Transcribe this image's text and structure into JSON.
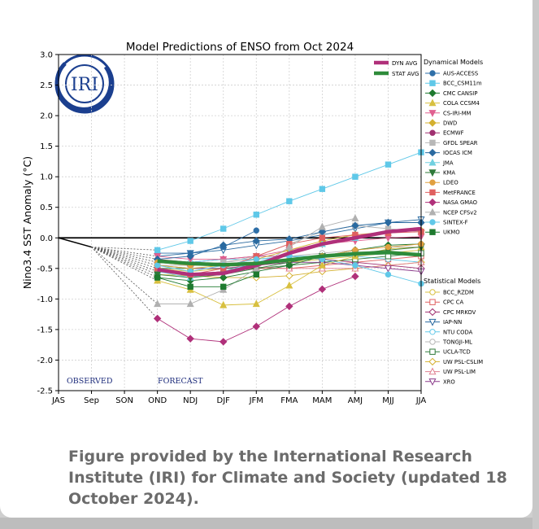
{
  "caption": "Figure provided by the International Research Institute (IRI) for Climate and Society (updated 18 October 2024).",
  "logo": {
    "text": "IRI",
    "color": "#1b3f8f"
  },
  "chart_data": {
    "type": "line",
    "title": "Model Predictions of ENSO from Oct 2024",
    "ylabel": "Nino3.4 SST Anomaly (°C)",
    "xlabel": "",
    "categories": [
      "JAS",
      "Sep",
      "SON",
      "OND",
      "NDJ",
      "DJF",
      "JFM",
      "FMA",
      "MAM",
      "AMJ",
      "MJJ",
      "JJA"
    ],
    "ylim": [
      -2.5,
      3.0
    ],
    "yticks": [
      "-2.5",
      "-2.0",
      "-1.5",
      "-1.0",
      "-0.5",
      "0.0",
      "0.5",
      "1.0",
      "1.5",
      "2.0",
      "2.5",
      "3.0"
    ],
    "ytick_values": [
      -2.5,
      -2.0,
      -1.5,
      -1.0,
      -0.5,
      0.0,
      0.5,
      1.0,
      1.5,
      2.0,
      2.5,
      3.0
    ],
    "grid": true,
    "annotations": {
      "observed": "OBSERVED",
      "forecast": "FORECAST"
    },
    "legend_avg": [
      {
        "name": "DYN AVG",
        "color": "#b0307a"
      },
      {
        "name": "STAT AVG",
        "color": "#2e8b3a"
      }
    ],
    "legend_dynamical_title": "Dynamical Models",
    "legend_statistical_title": "Statistical Models",
    "observed_line": {
      "x": [
        0,
        1
      ],
      "values": [
        0.0,
        -0.15
      ]
    },
    "dynamical": [
      {
        "name": "AUS-ACCESS",
        "color": "#2e6fa8",
        "marker": "o",
        "values": [
          null,
          null,
          null,
          -0.25,
          -0.25,
          -0.15,
          0.12,
          null,
          null,
          null,
          null,
          null
        ]
      },
      {
        "name": "BCC_CSM11m",
        "color": "#5fc8e8",
        "marker": "s",
        "values": [
          null,
          null,
          null,
          -0.2,
          -0.05,
          0.15,
          0.38,
          0.6,
          0.8,
          1.0,
          1.2,
          1.4
        ]
      },
      {
        "name": "CMC CANSIP",
        "color": "#1e7a2f",
        "marker": "D",
        "values": [
          null,
          null,
          null,
          -0.65,
          -0.7,
          -0.65,
          -0.55,
          -0.45,
          -0.3,
          -0.2,
          -0.12,
          -0.1
        ]
      },
      {
        "name": "COLA CCSM4",
        "color": "#d8c040",
        "marker": "^",
        "values": [
          null,
          null,
          null,
          -0.7,
          -0.85,
          -1.1,
          -1.08,
          -0.78,
          -0.45,
          -0.3,
          -0.18,
          -0.15
        ]
      },
      {
        "name": "CS-IRI-MM",
        "color": "#e06090",
        "marker": "v",
        "values": [
          null,
          null,
          null,
          -0.3,
          -0.35,
          -0.35,
          -0.3,
          -0.2,
          -0.1,
          -0.05,
          0.0,
          0.02
        ]
      },
      {
        "name": "DWD",
        "color": "#d4b030",
        "marker": "D",
        "values": [
          null,
          null,
          null,
          -0.45,
          -0.5,
          -0.45,
          -0.35,
          -0.2,
          -0.05,
          0.05,
          0.1,
          0.12
        ]
      },
      {
        "name": "ECMWF",
        "color": "#a03070",
        "marker": "o",
        "values": [
          null,
          null,
          null,
          -0.5,
          -0.6,
          -0.55,
          -0.45,
          null,
          null,
          null,
          null,
          null
        ]
      },
      {
        "name": "GFDL SPEAR",
        "color": "#b8b8b8",
        "marker": "s",
        "values": [
          null,
          null,
          null,
          -0.4,
          -0.45,
          -0.4,
          -0.3,
          -0.1,
          0.1,
          0.2,
          0.15,
          0.1
        ]
      },
      {
        "name": "IOCAS ICM",
        "color": "#2a6aa0",
        "marker": "D",
        "values": [
          null,
          null,
          null,
          -0.35,
          -0.3,
          -0.12,
          -0.05,
          -0.02,
          0.1,
          0.2,
          0.25,
          0.25
        ]
      },
      {
        "name": "JMA",
        "color": "#70d0e0",
        "marker": "^",
        "values": [
          null,
          null,
          null,
          -0.55,
          -0.65,
          -0.55,
          -0.4,
          -0.25,
          -0.1,
          0.0,
          null,
          null
        ]
      },
      {
        "name": "KMA",
        "color": "#2f7a3a",
        "marker": "v",
        "values": [
          null,
          null,
          null,
          -0.6,
          -0.65,
          -0.6,
          -0.5,
          -0.4,
          -0.3,
          -0.25,
          -0.2,
          -0.15
        ]
      },
      {
        "name": "LDEO",
        "color": "#e0a040",
        "marker": "o",
        "values": [
          null,
          null,
          null,
          -0.4,
          -0.45,
          -0.45,
          -0.4,
          -0.35,
          -0.3,
          -0.2,
          -0.15,
          -0.1
        ]
      },
      {
        "name": "MetFRANCE",
        "color": "#e06060",
        "marker": "s",
        "values": [
          null,
          null,
          null,
          -0.5,
          -0.6,
          -0.5,
          -0.3,
          -0.1,
          0.0,
          0.05,
          0.08,
          0.1
        ]
      },
      {
        "name": "NASA GMAO",
        "color": "#b0307a",
        "marker": "D",
        "values": [
          null,
          null,
          null,
          -1.32,
          -1.65,
          -1.7,
          -1.45,
          -1.12,
          -0.84,
          -0.63,
          null,
          null
        ]
      },
      {
        "name": "NCEP CFSv2",
        "color": "#b0b0b0",
        "marker": "^",
        "values": [
          null,
          null,
          null,
          -1.08,
          -1.08,
          -0.85,
          -0.5,
          -0.15,
          0.18,
          0.32,
          null,
          null
        ]
      },
      {
        "name": "SINTEX-F",
        "color": "#60c8e8",
        "marker": "o",
        "values": [
          null,
          null,
          null,
          -0.45,
          -0.55,
          -0.45,
          -0.35,
          -0.3,
          -0.35,
          -0.45,
          -0.6,
          -0.75
        ]
      },
      {
        "name": "UKMO",
        "color": "#1e7a2f",
        "marker": "s",
        "values": [
          null,
          null,
          null,
          -0.65,
          -0.8,
          -0.8,
          -0.6,
          null,
          null,
          null,
          null,
          null
        ]
      }
    ],
    "statistical": [
      {
        "name": "BCC_RZDM",
        "color": "#d8c040",
        "marker": "o",
        "values": [
          null,
          null,
          null,
          -0.5,
          -0.55,
          -0.5,
          -0.45,
          -0.4,
          -0.35,
          -0.3,
          -0.25,
          -0.2
        ]
      },
      {
        "name": "CPC CA",
        "color": "#e06060",
        "marker": "s",
        "values": [
          null,
          null,
          null,
          -0.55,
          -0.6,
          -0.55,
          -0.5,
          -0.5,
          -0.45,
          -0.4,
          -0.35,
          -0.3
        ]
      },
      {
        "name": "CPC MRKOV",
        "color": "#a03070",
        "marker": "D",
        "values": [
          null,
          null,
          null,
          -0.35,
          -0.4,
          -0.35,
          -0.3,
          -0.3,
          -0.35,
          -0.4,
          -0.45,
          -0.5
        ]
      },
      {
        "name": "IAP-NN",
        "color": "#2a6aa0",
        "marker": "v",
        "values": [
          null,
          null,
          null,
          -0.3,
          -0.25,
          -0.2,
          -0.12,
          -0.05,
          0.05,
          0.15,
          0.25,
          0.3
        ]
      },
      {
        "name": "NTU CODA",
        "color": "#60c8e8",
        "marker": "o",
        "values": [
          null,
          null,
          null,
          -0.4,
          -0.4,
          -0.35,
          -0.35,
          -0.3,
          -0.3,
          -0.3,
          -0.35,
          -0.4
        ]
      },
      {
        "name": "TONGJI-ML",
        "color": "#b8b8b8",
        "marker": "o",
        "values": [
          null,
          null,
          null,
          -0.45,
          -0.45,
          -0.4,
          -0.35,
          -0.3,
          -0.25,
          -0.2,
          -0.15,
          -0.15
        ]
      },
      {
        "name": "UCLA-TCD",
        "color": "#2f7a3a",
        "marker": "s",
        "values": [
          null,
          null,
          null,
          -0.5,
          -0.5,
          -0.5,
          -0.5,
          -0.45,
          -0.4,
          -0.35,
          -0.3,
          -0.25
        ]
      },
      {
        "name": "UW PSL-CSLIM",
        "color": "#d4b030",
        "marker": "D",
        "values": [
          null,
          null,
          null,
          -0.6,
          -0.62,
          -0.65,
          -0.65,
          -0.62,
          -0.55,
          -0.5,
          -0.45,
          -0.4
        ]
      },
      {
        "name": "UW PSL-LIM",
        "color": "#e08090",
        "marker": "^",
        "values": [
          null,
          null,
          null,
          -0.4,
          -0.42,
          -0.45,
          -0.48,
          -0.5,
          -0.5,
          -0.5,
          -0.45,
          -0.4
        ]
      },
      {
        "name": "XRO",
        "color": "#8a3a8a",
        "marker": "v",
        "values": [
          null,
          null,
          null,
          -0.45,
          -0.5,
          -0.5,
          -0.45,
          -0.4,
          -0.4,
          -0.45,
          -0.5,
          -0.55
        ]
      }
    ],
    "averages": [
      {
        "name": "DYN AVG",
        "color": "#b0307a",
        "values": [
          null,
          null,
          null,
          -0.52,
          -0.6,
          -0.58,
          -0.45,
          -0.25,
          -0.1,
          0.0,
          0.1,
          0.15
        ]
      },
      {
        "name": "STAT AVG",
        "color": "#2e8b3a",
        "values": [
          null,
          null,
          null,
          -0.38,
          -0.42,
          -0.44,
          -0.42,
          -0.36,
          -0.3,
          -0.26,
          -0.24,
          -0.28
        ]
      }
    ]
  }
}
